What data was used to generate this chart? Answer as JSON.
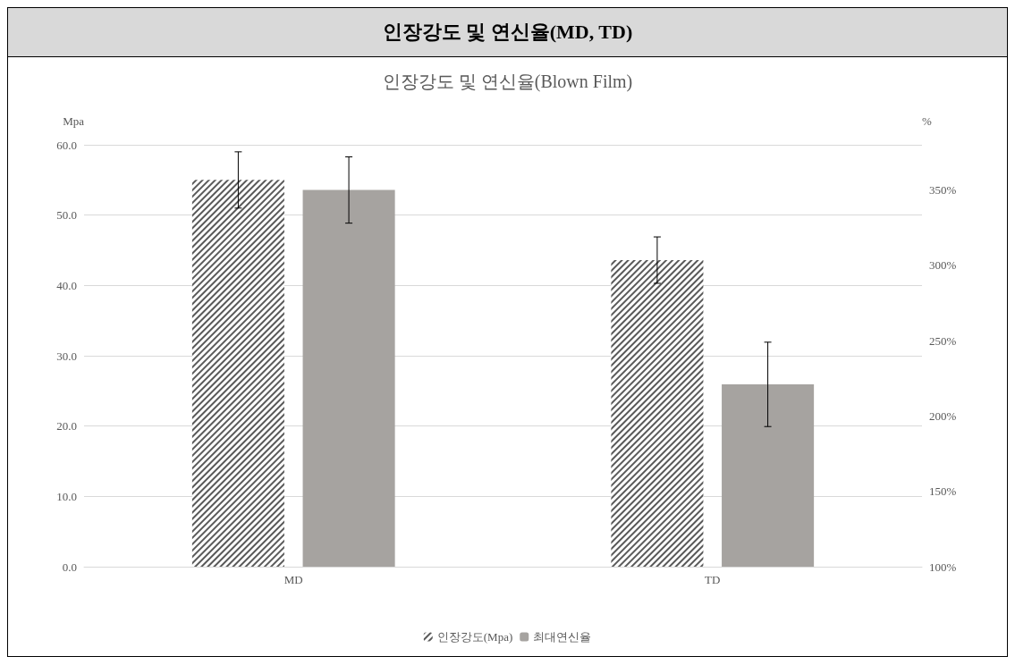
{
  "chart_data": {
    "type": "bar",
    "title": "인장강도 및 연신율(MD, TD)",
    "subtitle": "인장강도 및 연신율(Blown Film)",
    "ylabel": "Mpa",
    "y2label": "%",
    "categories": [
      "MD",
      "TD"
    ],
    "series": [
      {
        "name": "인장강도(Mpa)",
        "color": "#595959",
        "values": [
          55.0,
          43.6
        ],
        "errors": [
          4,
          3.3
        ]
      },
      {
        "name": "최대연신율",
        "color": "#a6a3a0",
        "values": [
          350,
          221
        ],
        "errors": [
          22,
          28
        ],
        "axis": "y2"
      }
    ],
    "ylim": [
      0,
      60
    ],
    "yticks": [
      {
        "value": 0,
        "label": "0.0"
      },
      {
        "value": 10,
        "label": "10.0"
      },
      {
        "value": 20,
        "label": "20.0"
      },
      {
        "value": 30,
        "label": "30.0"
      },
      {
        "value": 40,
        "label": "40.0"
      },
      {
        "value": 50,
        "label": "50.0"
      },
      {
        "value": 60,
        "label": "60.0"
      }
    ],
    "y2lim": [
      100,
      380
    ],
    "y2ticks": [
      {
        "value": 100,
        "label": "100%"
      },
      {
        "value": 150,
        "label": "150%"
      },
      {
        "value": 200,
        "label": "200%"
      },
      {
        "value": 250,
        "label": "250%"
      },
      {
        "value": 300,
        "label": "300%"
      },
      {
        "value": 350,
        "label": "350%"
      }
    ],
    "grid": "y",
    "legend": "bottom"
  }
}
